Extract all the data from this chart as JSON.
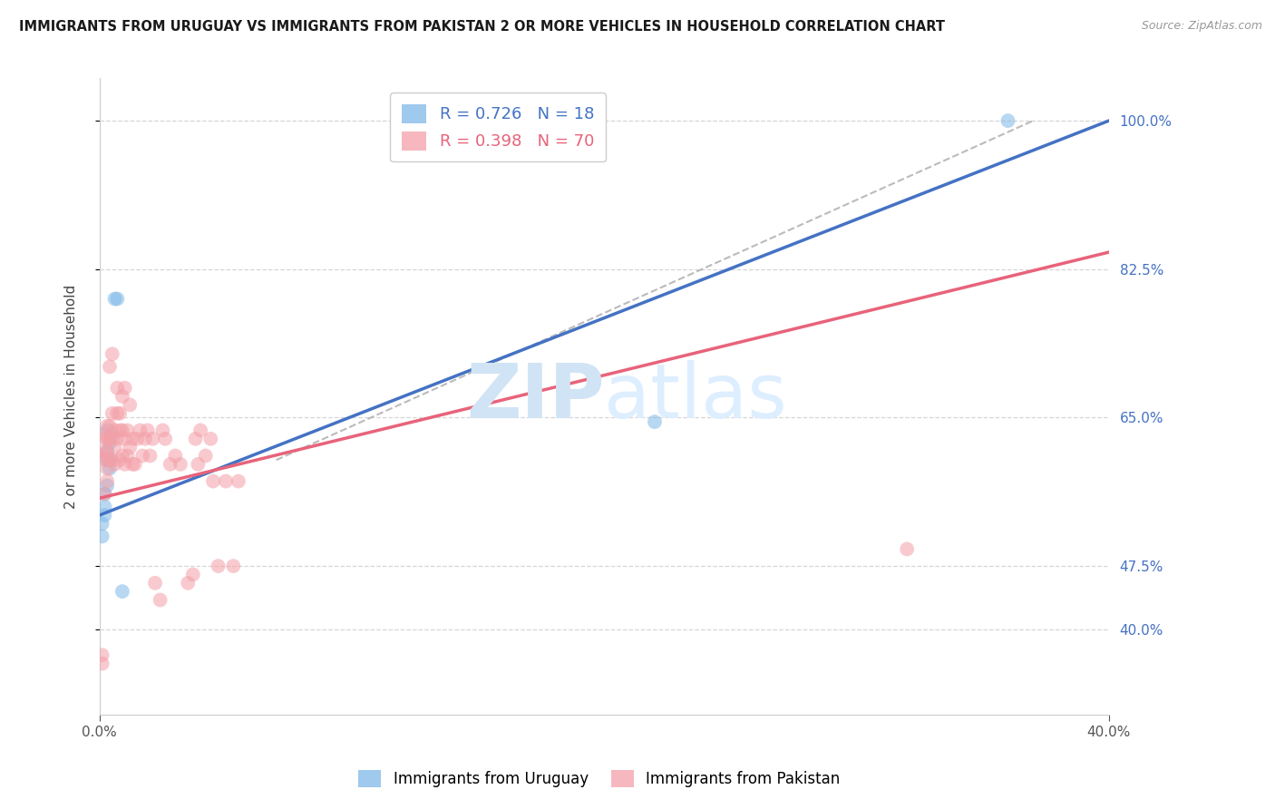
{
  "title": "IMMIGRANTS FROM URUGUAY VS IMMIGRANTS FROM PAKISTAN 2 OR MORE VEHICLES IN HOUSEHOLD CORRELATION CHART",
  "source": "Source: ZipAtlas.com",
  "ylabel": "2 or more Vehicles in Household",
  "legend_labels": [
    "Immigrants from Uruguay",
    "Immigrants from Pakistan"
  ],
  "r_uruguay": 0.726,
  "n_uruguay": 18,
  "r_pakistan": 0.398,
  "n_pakistan": 70,
  "xlim": [
    0.0,
    0.4
  ],
  "ylim": [
    0.3,
    1.05
  ],
  "color_uruguay": "#7fb8e8",
  "color_pakistan": "#f4a0a8",
  "color_line_uruguay": "#4472c4",
  "color_line_pakistan": "#e8637a",
  "background_color": "#ffffff",
  "watermark_color": "#d0e4f5",
  "uruguay_line_x": [
    0.0,
    0.4
  ],
  "uruguay_line_y": [
    0.535,
    1.0
  ],
  "pakistan_line_x": [
    0.0,
    0.4
  ],
  "pakistan_line_y": [
    0.555,
    0.845
  ],
  "diag_line_x": [
    0.07,
    0.37
  ],
  "diag_line_y": [
    0.6,
    1.0
  ],
  "right_yticks": [
    0.4,
    0.475,
    0.65,
    0.825,
    1.0
  ],
  "right_ytick_labels": [
    "40.0%",
    "47.5%",
    "65.0%",
    "82.5%",
    "100.0%"
  ],
  "xtick_labels": [
    "0.0%",
    "40.0%"
  ],
  "xtick_positions": [
    0.0,
    0.4
  ],
  "uruguay_x": [
    0.001,
    0.001,
    0.002,
    0.002,
    0.002,
    0.003,
    0.003,
    0.003,
    0.003,
    0.004,
    0.004,
    0.004,
    0.005,
    0.006,
    0.007,
    0.009,
    0.22,
    0.36
  ],
  "uruguay_y": [
    0.51,
    0.525,
    0.535,
    0.545,
    0.56,
    0.57,
    0.6,
    0.61,
    0.635,
    0.59,
    0.6,
    0.62,
    0.63,
    0.79,
    0.79,
    0.445,
    0.645,
    1.0
  ],
  "pakistan_x": [
    0.001,
    0.001,
    0.001,
    0.002,
    0.002,
    0.002,
    0.002,
    0.002,
    0.003,
    0.003,
    0.003,
    0.003,
    0.003,
    0.004,
    0.004,
    0.004,
    0.004,
    0.005,
    0.005,
    0.005,
    0.005,
    0.006,
    0.006,
    0.006,
    0.007,
    0.007,
    0.007,
    0.008,
    0.008,
    0.008,
    0.009,
    0.009,
    0.009,
    0.01,
    0.01,
    0.01,
    0.011,
    0.011,
    0.012,
    0.012,
    0.013,
    0.013,
    0.014,
    0.015,
    0.016,
    0.017,
    0.018,
    0.019,
    0.02,
    0.021,
    0.022,
    0.024,
    0.025,
    0.026,
    0.028,
    0.03,
    0.032,
    0.035,
    0.037,
    0.038,
    0.039,
    0.04,
    0.042,
    0.044,
    0.045,
    0.047,
    0.05,
    0.053,
    0.055,
    0.32
  ],
  "pakistan_y": [
    0.36,
    0.37,
    0.605,
    0.56,
    0.6,
    0.61,
    0.625,
    0.63,
    0.575,
    0.59,
    0.61,
    0.625,
    0.64,
    0.6,
    0.625,
    0.64,
    0.71,
    0.6,
    0.625,
    0.655,
    0.725,
    0.595,
    0.615,
    0.635,
    0.625,
    0.655,
    0.685,
    0.6,
    0.635,
    0.655,
    0.605,
    0.635,
    0.675,
    0.595,
    0.625,
    0.685,
    0.605,
    0.635,
    0.615,
    0.665,
    0.595,
    0.625,
    0.595,
    0.625,
    0.635,
    0.605,
    0.625,
    0.635,
    0.605,
    0.625,
    0.455,
    0.435,
    0.635,
    0.625,
    0.595,
    0.605,
    0.595,
    0.455,
    0.465,
    0.625,
    0.595,
    0.635,
    0.605,
    0.625,
    0.575,
    0.475,
    0.575,
    0.475,
    0.575,
    0.495
  ]
}
